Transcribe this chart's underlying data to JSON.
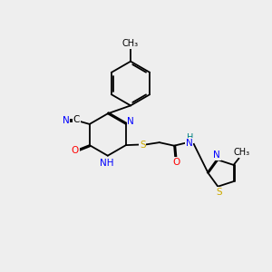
{
  "background_color": "#eeeeee",
  "bond_color": "#000000",
  "figsize": [
    3.0,
    3.0
  ],
  "dpi": 100,
  "N_color": "#0000ff",
  "O_color": "#ff0000",
  "S_color": "#ccaa00",
  "C_color": "#000000",
  "H_color": "#008080",
  "lw": 1.3,
  "fs": 7.5,
  "xlim": [
    0.0,
    10.0
  ],
  "ylim": [
    1.5,
    10.5
  ]
}
